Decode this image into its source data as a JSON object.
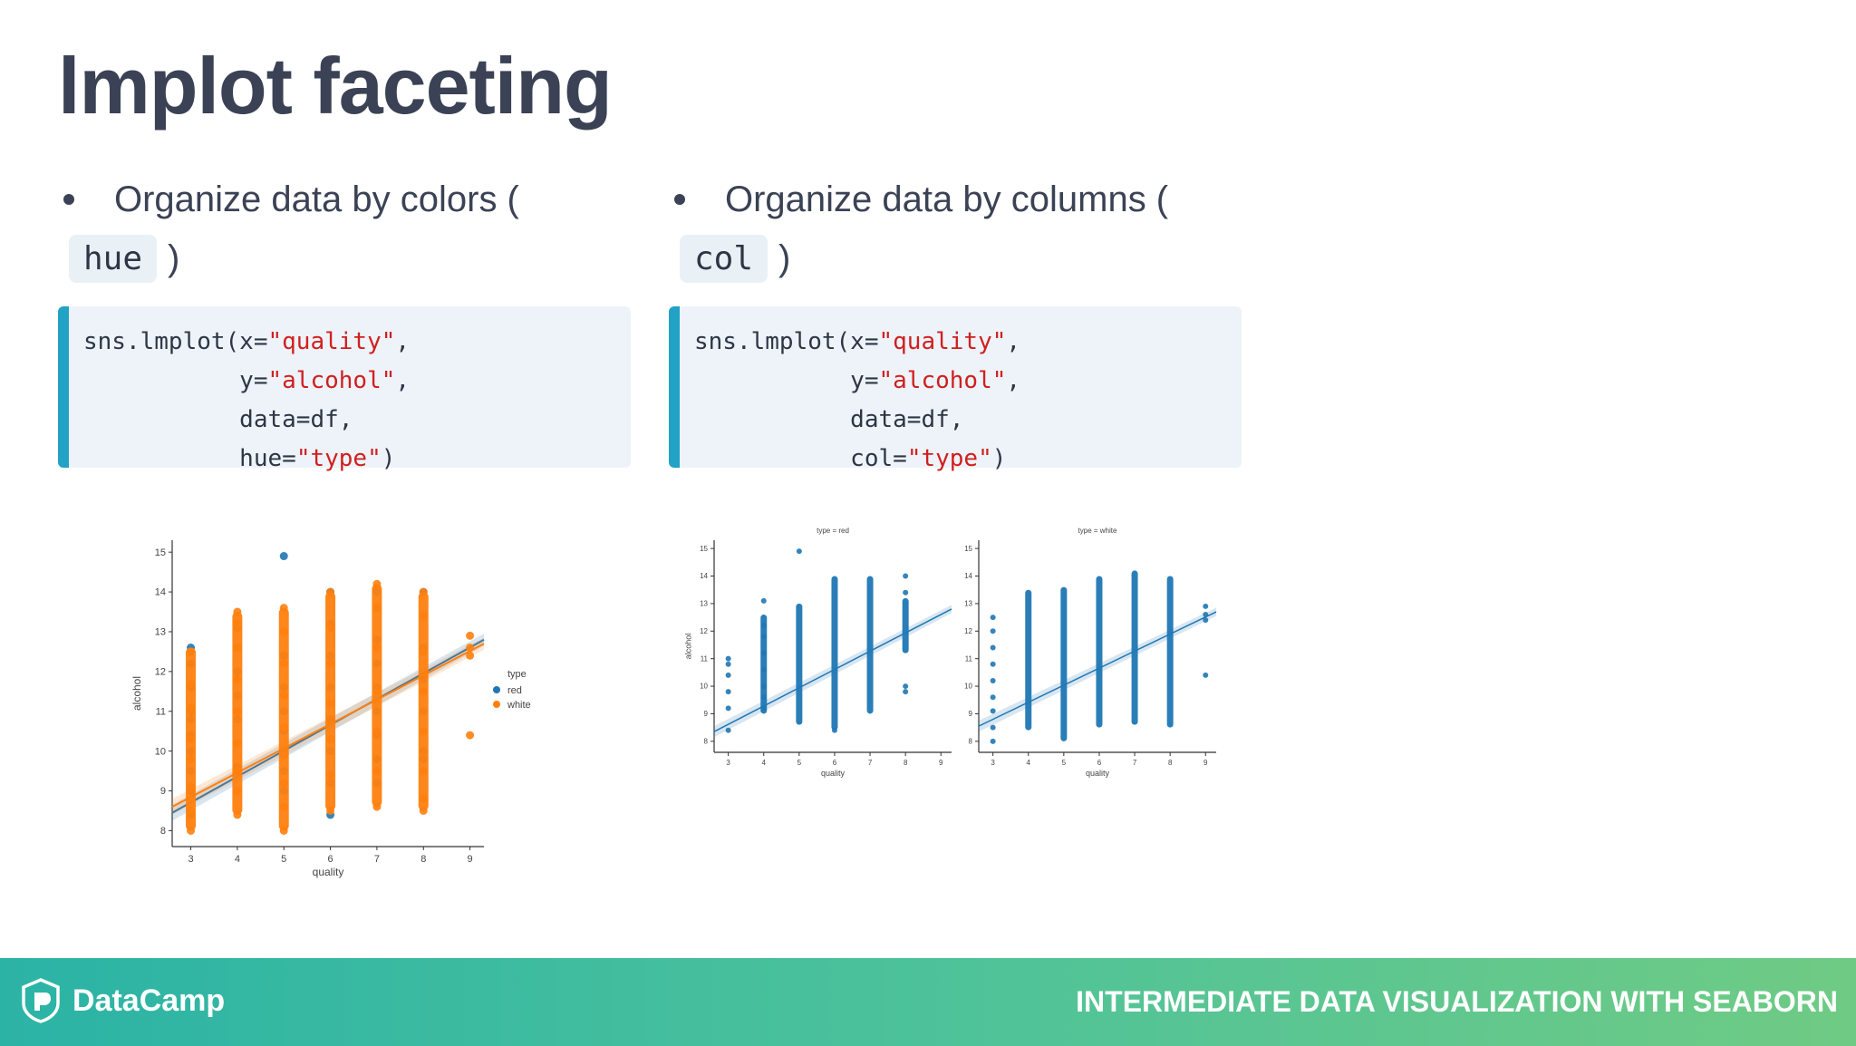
{
  "slide": {
    "title": "lmplot faceting"
  },
  "left": {
    "bullet_text": "Organize data by colors (",
    "chip": "hue",
    "close": ")",
    "code": [
      [
        {
          "t": "sns.lmplot(x=",
          "s": false
        },
        {
          "t": "\"quality\"",
          "s": true
        },
        {
          "t": ",",
          "s": false
        }
      ],
      [
        {
          "t": "           y=",
          "s": false
        },
        {
          "t": "\"alcohol\"",
          "s": true
        },
        {
          "t": ",",
          "s": false
        }
      ],
      [
        {
          "t": "           data=df,",
          "s": false
        }
      ],
      [
        {
          "t": "           hue=",
          "s": false
        },
        {
          "t": "\"type\"",
          "s": true
        },
        {
          "t": ")",
          "s": false
        }
      ]
    ]
  },
  "right": {
    "bullet_text": "Organize data by columns (",
    "chip": "col",
    "close": ")",
    "code": [
      [
        {
          "t": "sns.lmplot(x=",
          "s": false
        },
        {
          "t": "\"quality\"",
          "s": true
        },
        {
          "t": ",",
          "s": false
        }
      ],
      [
        {
          "t": "           y=",
          "s": false
        },
        {
          "t": "\"alcohol\"",
          "s": true
        },
        {
          "t": ",",
          "s": false
        }
      ],
      [
        {
          "t": "           data=df,",
          "s": false
        }
      ],
      [
        {
          "t": "           col=",
          "s": false
        },
        {
          "t": "\"type\"",
          "s": true
        },
        {
          "t": ")",
          "s": false
        }
      ]
    ]
  },
  "chart_data": [
    {
      "type": "scatter",
      "title": "",
      "xlabel": "quality",
      "ylabel": "alcohol",
      "xlim": [
        2.6,
        9.3
      ],
      "ylim": [
        7.6,
        15.3
      ],
      "xticks": [
        3,
        4,
        5,
        6,
        7,
        8,
        9
      ],
      "yticks": [
        8,
        9,
        10,
        11,
        12,
        13,
        14,
        15
      ],
      "legend": {
        "title": "type",
        "position": "right"
      },
      "series": [
        {
          "name": "red",
          "color": "#1f77b4",
          "points": [
            [
              3,
              8.4
            ],
            [
              3,
              9.0
            ],
            [
              3,
              9.5
            ],
            [
              3,
              10.0
            ],
            [
              3,
              10.4
            ],
            [
              3,
              10.8
            ],
            [
              3,
              11.0
            ],
            [
              3,
              11.6
            ],
            [
              3,
              12.2
            ],
            [
              3,
              12.6
            ],
            [
              4,
              9.0
            ],
            [
              4,
              9.6
            ],
            [
              4,
              10.2
            ],
            [
              4,
              10.8
            ],
            [
              4,
              11.4
            ],
            [
              4,
              12.0
            ],
            [
              4,
              12.6
            ],
            [
              4,
              13.1
            ],
            [
              5,
              9.0
            ],
            [
              5,
              9.5
            ],
            [
              5,
              10.0
            ],
            [
              5,
              10.5
            ],
            [
              5,
              11.0
            ],
            [
              5,
              11.6
            ],
            [
              5,
              12.4
            ],
            [
              5,
              13.0
            ],
            [
              5,
              14.9
            ],
            [
              6,
              8.4
            ],
            [
              6,
              9.2
            ],
            [
              6,
              10.0
            ],
            [
              6,
              10.8
            ],
            [
              6,
              11.6
            ],
            [
              6,
              12.4
            ],
            [
              6,
              13.2
            ],
            [
              6,
              14.0
            ],
            [
              7,
              9.2
            ],
            [
              7,
              9.8
            ],
            [
              7,
              10.4
            ],
            [
              7,
              11.0
            ],
            [
              7,
              11.6
            ],
            [
              7,
              12.2
            ],
            [
              7,
              12.8
            ],
            [
              7,
              13.6
            ],
            [
              7,
              14.0
            ],
            [
              8,
              9.8
            ],
            [
              8,
              10.0
            ],
            [
              8,
              11.0
            ],
            [
              8,
              11.8
            ],
            [
              8,
              12.6
            ],
            [
              8,
              13.4
            ],
            [
              8,
              14.0
            ]
          ],
          "fit": [
            [
              2.6,
              8.45
            ],
            [
              9.3,
              12.8
            ]
          ]
        },
        {
          "name": "white",
          "color": "#ff7f0e",
          "points": [
            [
              3,
              8.0
            ],
            [
              3,
              8.5
            ],
            [
              3,
              9.1
            ],
            [
              3,
              9.8
            ],
            [
              3,
              10.3
            ],
            [
              3,
              11.1
            ],
            [
              3,
              11.7
            ],
            [
              3,
              12.5
            ],
            [
              4,
              8.4
            ],
            [
              4,
              9.0
            ],
            [
              4,
              9.5
            ],
            [
              4,
              10.2
            ],
            [
              4,
              11.0
            ],
            [
              4,
              11.8
            ],
            [
              4,
              12.6
            ],
            [
              4,
              13.2
            ],
            [
              4,
              13.5
            ],
            [
              5,
              8.0
            ],
            [
              5,
              8.6
            ],
            [
              5,
              9.2
            ],
            [
              5,
              9.9
            ],
            [
              5,
              10.6
            ],
            [
              5,
              11.4
            ],
            [
              5,
              12.2
            ],
            [
              5,
              13.0
            ],
            [
              5,
              13.6
            ],
            [
              6,
              8.5
            ],
            [
              6,
              9.4
            ],
            [
              6,
              10.3
            ],
            [
              6,
              11.2
            ],
            [
              6,
              12.2
            ],
            [
              6,
              13.1
            ],
            [
              6,
              14.0
            ],
            [
              7,
              8.6
            ],
            [
              7,
              9.5
            ],
            [
              7,
              10.5
            ],
            [
              7,
              11.5
            ],
            [
              7,
              12.6
            ],
            [
              7,
              13.6
            ],
            [
              7,
              14.2
            ],
            [
              8,
              8.5
            ],
            [
              8,
              8.8
            ],
            [
              8,
              9.5
            ],
            [
              8,
              10.5
            ],
            [
              8,
              11.5
            ],
            [
              8,
              12.5
            ],
            [
              8,
              13.4
            ],
            [
              8,
              14.0
            ],
            [
              9,
              10.4
            ],
            [
              9,
              12.4
            ],
            [
              9,
              12.6
            ],
            [
              9,
              12.9
            ]
          ],
          "bars": [
            [
              3,
              8.0,
              12.6
            ],
            [
              4,
              8.4,
              13.5
            ],
            [
              5,
              8.0,
              13.6
            ],
            [
              6,
              8.5,
              14.0
            ],
            [
              7,
              8.6,
              14.2
            ],
            [
              8,
              8.5,
              14.0
            ]
          ],
          "fit": [
            [
              2.6,
              8.6
            ],
            [
              9.3,
              12.7
            ]
          ]
        }
      ]
    },
    {
      "type": "scatter",
      "title": "type = red",
      "xlabel": "quality",
      "ylabel": "alcohol",
      "xlim": [
        2.6,
        9.3
      ],
      "ylim": [
        7.6,
        15.3
      ],
      "xticks": [
        3,
        4,
        5,
        6,
        7,
        8,
        9
      ],
      "yticks": [
        8,
        9,
        10,
        11,
        12,
        13,
        14,
        15
      ],
      "series": [
        {
          "name": "",
          "color": "#1f77b4",
          "points": [
            [
              3,
              8.4
            ],
            [
              3,
              9.2
            ],
            [
              3,
              9.8
            ],
            [
              3,
              10.4
            ],
            [
              3,
              10.8
            ],
            [
              3,
              11.0
            ],
            [
              4,
              9.2
            ],
            [
              4,
              9.6
            ],
            [
              4,
              10.0
            ],
            [
              4,
              10.6
            ],
            [
              4,
              11.2
            ],
            [
              4,
              11.8
            ],
            [
              4,
              12.2
            ],
            [
              4,
              13.1
            ],
            [
              5,
              14.9
            ],
            [
              6,
              8.4
            ],
            [
              8,
              9.8
            ],
            [
              8,
              10.0
            ],
            [
              8,
              13.4
            ],
            [
              8,
              14.0
            ]
          ],
          "bars": [
            [
              4,
              9.0,
              12.6
            ],
            [
              5,
              8.6,
              13.0
            ],
            [
              6,
              8.4,
              14.0
            ],
            [
              7,
              9.0,
              14.0
            ],
            [
              8,
              11.2,
              13.2
            ]
          ],
          "fit": [
            [
              2.6,
              8.35
            ],
            [
              9.3,
              12.8
            ]
          ]
        }
      ]
    },
    {
      "type": "scatter",
      "title": "type = white",
      "xlabel": "quality",
      "ylabel": "",
      "xlim": [
        2.6,
        9.3
      ],
      "ylim": [
        7.6,
        15.3
      ],
      "xticks": [
        3,
        4,
        5,
        6,
        7,
        8,
        9
      ],
      "yticks": [
        8,
        9,
        10,
        11,
        12,
        13,
        14,
        15
      ],
      "series": [
        {
          "name": "",
          "color": "#1f77b4",
          "points": [
            [
              3,
              8.0
            ],
            [
              3,
              8.5
            ],
            [
              3,
              9.1
            ],
            [
              3,
              9.6
            ],
            [
              3,
              10.2
            ],
            [
              3,
              10.8
            ],
            [
              3,
              11.4
            ],
            [
              3,
              12.0
            ],
            [
              3,
              12.5
            ],
            [
              9,
              10.4
            ],
            [
              9,
              12.4
            ],
            [
              9,
              12.6
            ],
            [
              9,
              12.9
            ]
          ],
          "bars": [
            [
              4,
              8.4,
              13.5
            ],
            [
              5,
              8.0,
              13.6
            ],
            [
              6,
              8.5,
              14.0
            ],
            [
              7,
              8.6,
              14.2
            ],
            [
              8,
              8.5,
              14.0
            ]
          ],
          "fit": [
            [
              2.6,
              8.55
            ],
            [
              9.3,
              12.7
            ]
          ]
        }
      ]
    }
  ],
  "footer": {
    "brand": "DataCamp",
    "course": "INTERMEDIATE DATA VISUALIZATION WITH SEABORN",
    "gradient": [
      "#2bb3a6",
      "#6fcb84"
    ]
  }
}
